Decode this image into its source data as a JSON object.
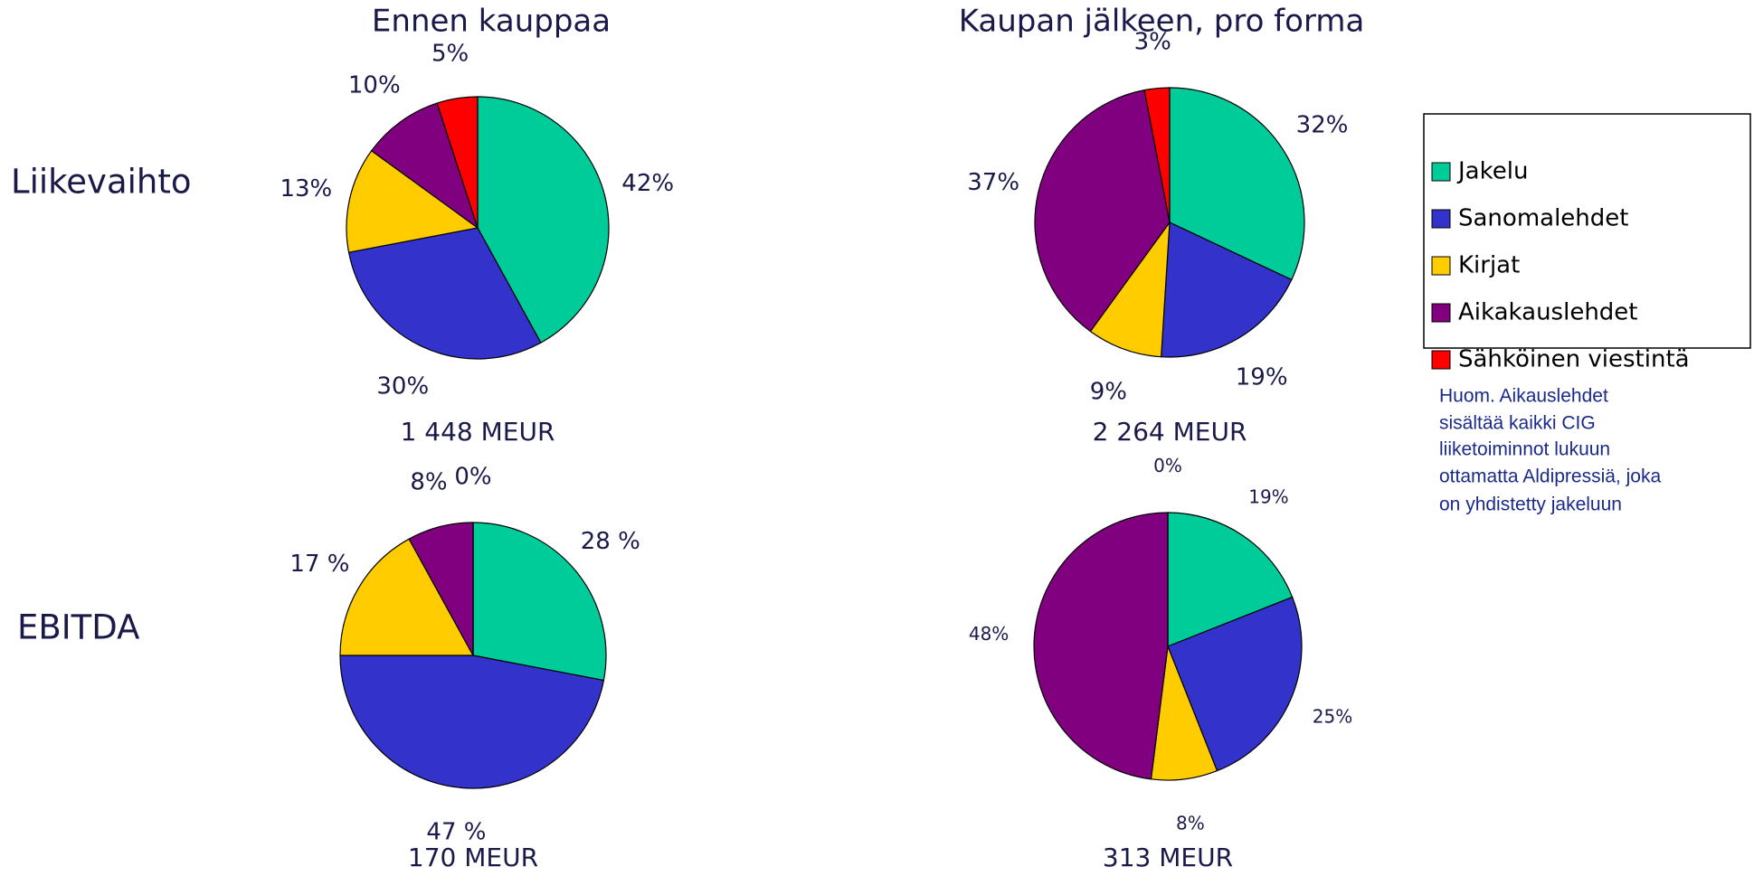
{
  "columns": [
    "Ennen kauppaa",
    "Kaupan jälkeen, pro forma"
  ],
  "rows": [
    "Liikevaihto",
    "EBITDA"
  ],
  "note": [
    "Huom. Aikauslehdet",
    "sisältää kaikki CIG",
    "liiketoiminnot lukuun",
    "ottamatta Aldipressiä, joka",
    "on yhdistetty jakeluun"
  ],
  "chart_data": [
    {
      "type": "pie",
      "subtitle": "1 448 MEUR",
      "categories": [
        "Jakelu",
        "Sanomalehdet",
        "Kirjat",
        "Aikakauslehdet",
        "Sähköinen viestintä"
      ],
      "values": [
        42,
        30,
        13,
        10,
        5
      ],
      "value_labels": [
        "42%",
        "30%",
        "13%",
        "10%",
        "5%"
      ],
      "colors": [
        "#00cc99",
        "#3333cc",
        "#ffcc00",
        "#800080",
        "#ff0000"
      ],
      "legend": "right"
    },
    {
      "type": "pie",
      "subtitle": "2 264 MEUR",
      "categories": [
        "Jakelu",
        "Sanomalehdet",
        "Kirjat",
        "Aikakauslehdet",
        "Sähköinen viestintä"
      ],
      "values": [
        32,
        19,
        9,
        37,
        3
      ],
      "value_labels": [
        "32%",
        "19%",
        "9%",
        "37%",
        "3%"
      ],
      "colors": [
        "#00cc99",
        "#3333cc",
        "#ffcc00",
        "#800080",
        "#ff0000"
      ]
    },
    {
      "type": "pie",
      "subtitle": "170  MEUR",
      "categories": [
        "Jakelu",
        "Sanomalehdet",
        "Kirjat",
        "Aikakauslehdet",
        "Sähköinen viestintä"
      ],
      "values": [
        28,
        47,
        17,
        8,
        0
      ],
      "value_labels": [
        "28 %",
        "47 %",
        "17 %",
        "8%",
        "0%"
      ],
      "colors": [
        "#00cc99",
        "#3333cc",
        "#ffcc00",
        "#800080",
        "#ff0000"
      ]
    },
    {
      "type": "pie",
      "subtitle": "313 MEUR",
      "categories": [
        "Jakelu",
        "Sanomalehdet",
        "Kirjat",
        "Aikakauslehdet",
        "Sähköinen viestintä"
      ],
      "values": [
        19,
        25,
        8,
        48,
        0
      ],
      "value_labels": [
        "19%",
        "25%",
        "8%",
        "48%",
        "0%"
      ],
      "colors": [
        "#00cc99",
        "#3333cc",
        "#ffcc00",
        "#800080",
        "#ff0000"
      ]
    }
  ]
}
